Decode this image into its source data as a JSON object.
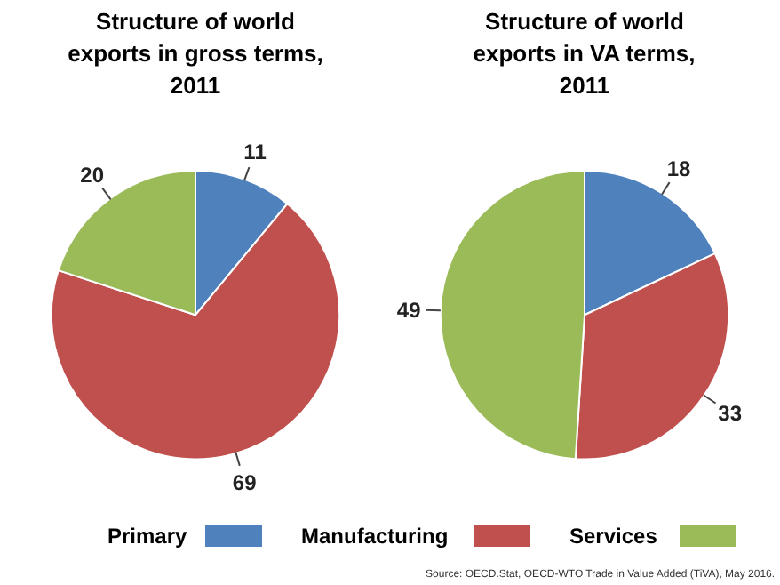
{
  "chart_data": [
    {
      "type": "pie",
      "title": "Structure of world exports in gross terms, 2011",
      "categories": [
        "Primary",
        "Manufacturing",
        "Services"
      ],
      "values": [
        11,
        69,
        20
      ],
      "colors": [
        "#4f81bd",
        "#c0504d",
        "#9bbb59"
      ],
      "data_labels": true,
      "legend": "bottom"
    },
    {
      "type": "pie",
      "title": "Structure of world exports in VA terms, 2011",
      "categories": [
        null,
        null,
        null
      ],
      "values": [
        18,
        33,
        49
      ],
      "colors": [
        "#4f81bd",
        "#c0504d",
        "#9bbb59"
      ],
      "data_labels": true,
      "annotations": [
        "Source: OECD.Stat, OECD-WTO Trade in Value Added (TiVA), May 2016."
      ]
    }
  ]
}
